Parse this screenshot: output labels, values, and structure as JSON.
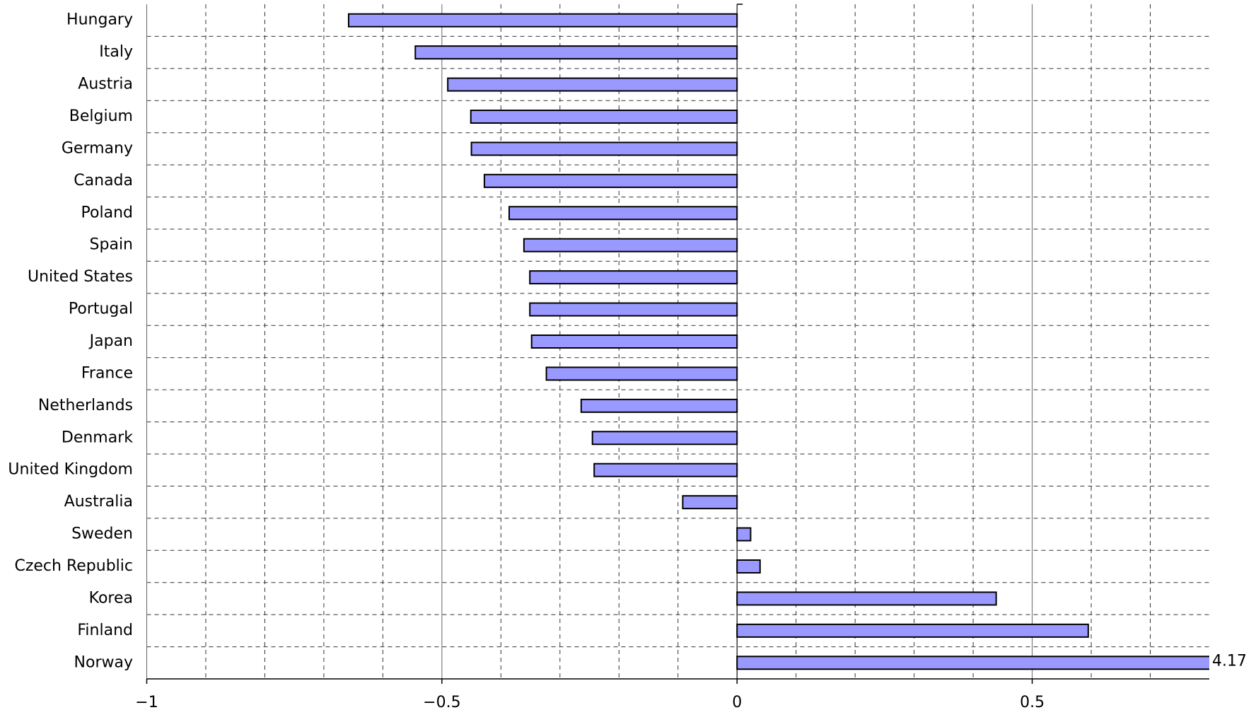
{
  "chart_data": {
    "type": "bar",
    "orientation": "horizontal",
    "categories": [
      "Hungary",
      "Italy",
      "Austria",
      "Belgium",
      "Germany",
      "Canada",
      "Poland",
      "Spain",
      "United States",
      "Portugal",
      "Japan",
      "France",
      "Netherlands",
      "Denmark",
      "United Kingdom",
      "Australia",
      "Sweden",
      "Czech Republic",
      "Korea",
      "Finland",
      "Norway"
    ],
    "values": [
      -0.658,
      -0.545,
      -0.49,
      -0.451,
      -0.45,
      -0.428,
      -0.386,
      -0.361,
      -0.351,
      -0.351,
      -0.348,
      -0.323,
      -0.264,
      -0.245,
      -0.242,
      -0.092,
      0.023,
      0.039,
      0.439,
      0.595,
      4.17
    ],
    "value_labels": [
      null,
      null,
      null,
      null,
      null,
      null,
      null,
      null,
      null,
      null,
      null,
      null,
      null,
      null,
      null,
      null,
      null,
      null,
      null,
      null,
      "4.17"
    ],
    "color": "#9999ff",
    "xlim": [
      -1,
      0.8
    ],
    "xticks": [
      {
        "value": -1,
        "label": "−1"
      },
      {
        "value": -0.5,
        "label": "−0.5"
      },
      0,
      0.5
    ],
    "xminor": [
      -0.9,
      -0.8,
      -0.7,
      -0.6,
      -0.4,
      -0.3,
      -0.2,
      -0.1,
      0.1,
      0.2,
      0.3,
      0.4,
      0.6,
      0.7
    ],
    "grid": true
  }
}
